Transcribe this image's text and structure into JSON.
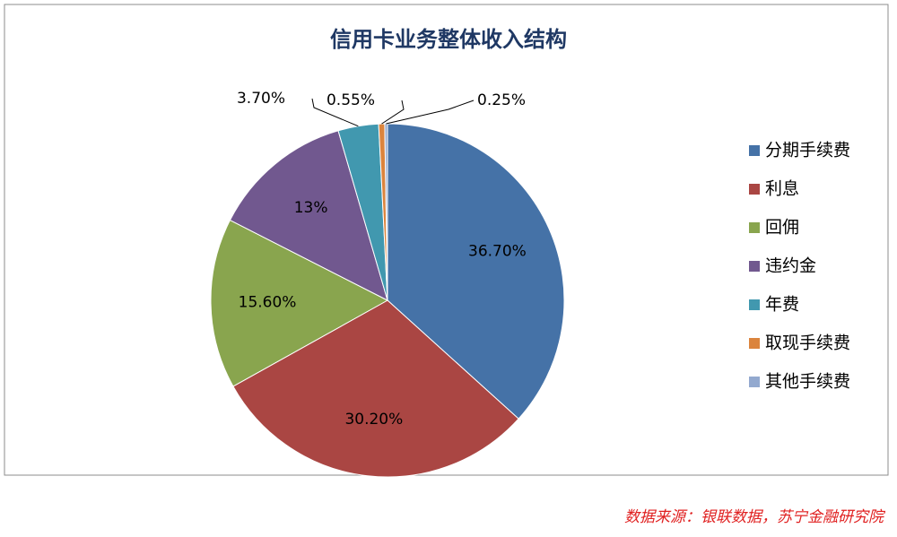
{
  "chart_data": {
    "type": "pie",
    "title": "信用卡业务整体收入结构",
    "categories": [
      "分期手续费",
      "利息",
      "回佣",
      "违约金",
      "年费",
      "取现手续费",
      "其他手续费"
    ],
    "values": [
      36.7,
      30.2,
      15.6,
      13,
      3.7,
      0.55,
      0.25
    ],
    "value_labels": [
      "36.70%",
      "30.20%",
      "15.60%",
      "13%",
      "3.70%",
      "0.55%",
      "0.25%"
    ],
    "colors": [
      "#4572a7",
      "#aa4643",
      "#89a54e",
      "#71588f",
      "#4198af",
      "#db843d",
      "#93a9cf"
    ],
    "legend": "right",
    "source": "数据来源：银联数据，苏宁金融研究院"
  }
}
